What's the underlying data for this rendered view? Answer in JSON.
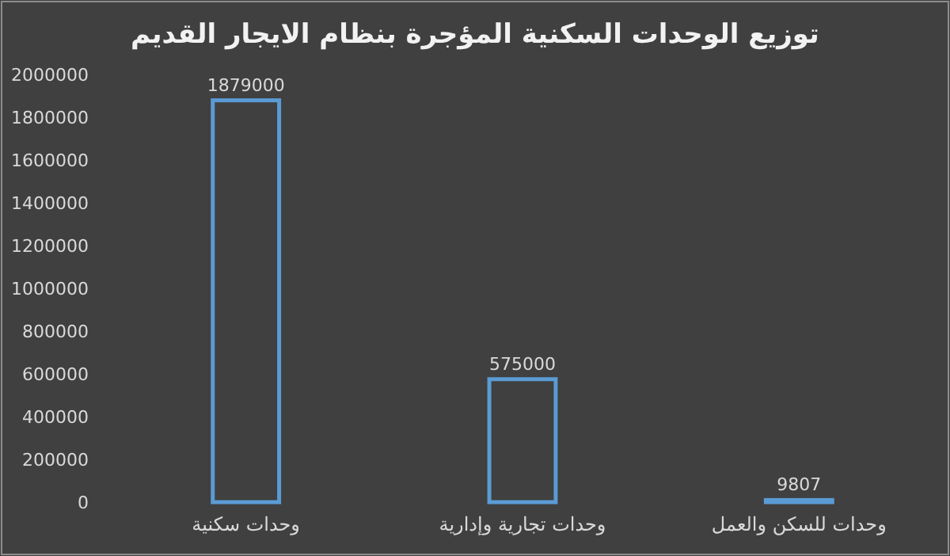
{
  "chart_data": {
    "type": "bar",
    "title": "توزيع الوحدات السكنية المؤجرة بنظام الايجار القديم",
    "categories": [
      "وحدات سكنية",
      "وحدات تجارية وإدارية",
      "وحدات للسكن والعمل"
    ],
    "values": [
      1879000,
      575000,
      9807
    ],
    "color": "#5b9bd5",
    "ylim": [
      0,
      2000000
    ],
    "yticks": [
      0,
      200000,
      400000,
      600000,
      800000,
      1000000,
      1200000,
      1400000,
      1600000,
      1800000,
      2000000
    ],
    "data_labels": true,
    "grid": false
  }
}
